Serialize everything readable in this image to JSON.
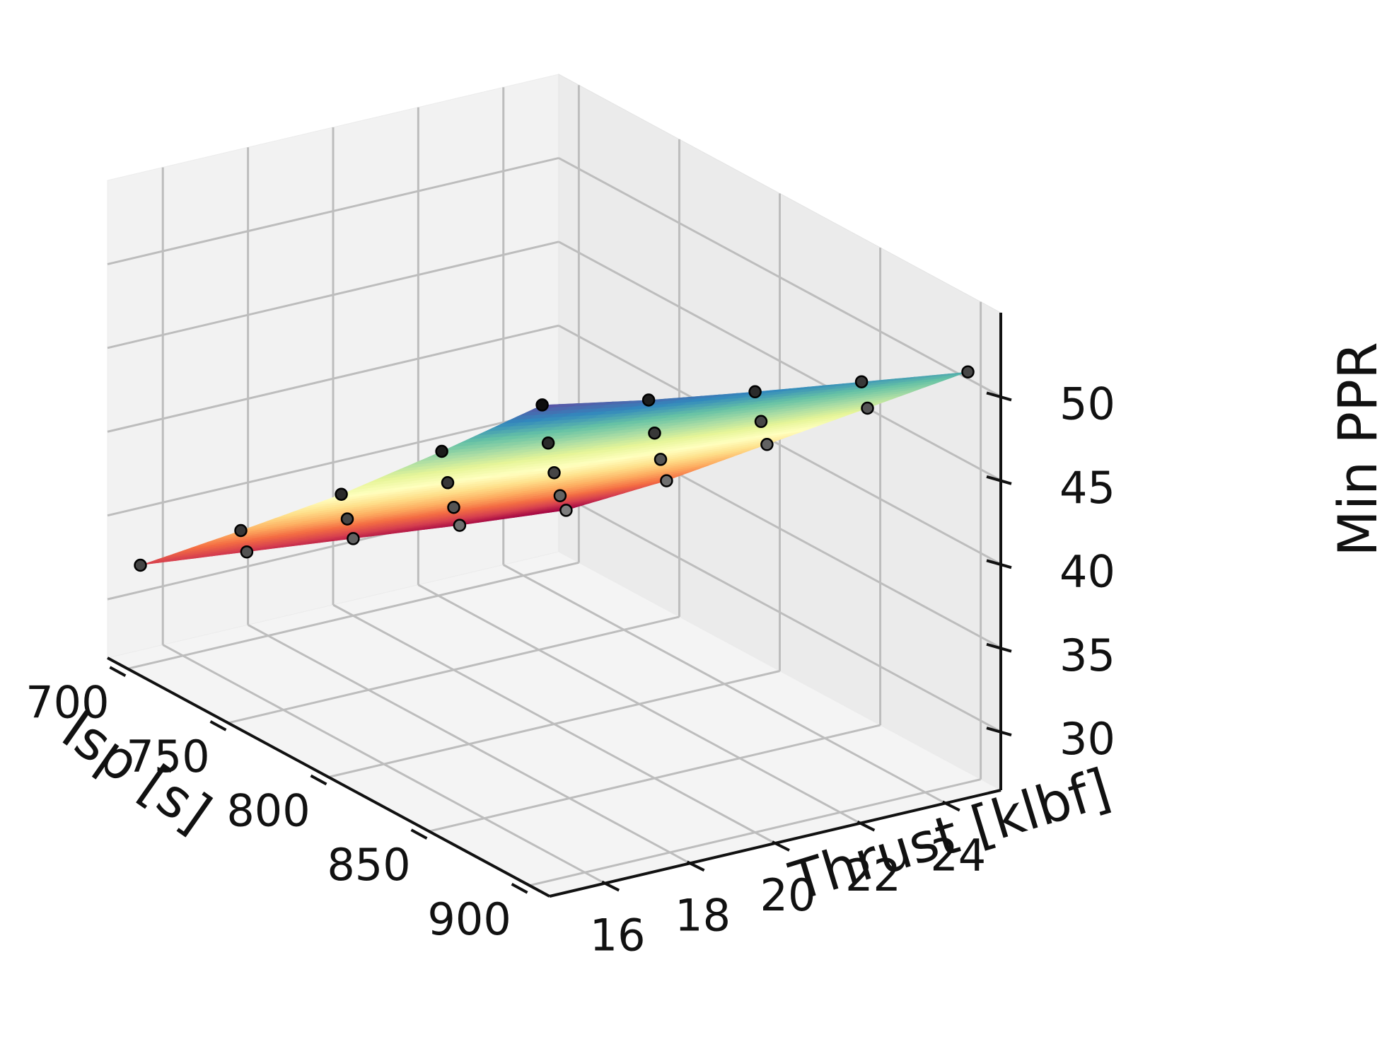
{
  "chart_data": {
    "type": "surface3d",
    "title": "",
    "xlabel": "Isp [s]",
    "ylabel": "Thrust [klbf]",
    "zlabel": "Min PPR",
    "x_ticks": [
      700,
      750,
      800,
      850,
      900
    ],
    "y_ticks": [
      16,
      18,
      20,
      22,
      24
    ],
    "z_ticks": [
      30,
      35,
      40,
      45,
      50
    ],
    "xlim": [
      690,
      910
    ],
    "ylim": [
      14.7,
      25.3
    ],
    "zlim": [
      26.5,
      55
    ],
    "grid": true,
    "colormap": "Spectral",
    "colormap_stops": [
      "#9e0142",
      "#d53e4f",
      "#f46d43",
      "#fdae61",
      "#fee08b",
      "#ffffbf",
      "#e6f598",
      "#abdda4",
      "#66c2a5",
      "#3288bd",
      "#5e4fa2"
    ],
    "isp_values": [
      700,
      750,
      800,
      850,
      900
    ],
    "thrust_values": [
      15,
      17.5,
      20,
      22.5,
      25
    ],
    "points": [
      {
        "isp": 700,
        "thrust": 15,
        "min_ppr": 32.5
      },
      {
        "isp": 750,
        "thrust": 15,
        "min_ppr": 37.8
      },
      {
        "isp": 800,
        "thrust": 15,
        "min_ppr": 43.2
      },
      {
        "isp": 850,
        "thrust": 15,
        "min_ppr": 49.0
      },
      {
        "isp": 900,
        "thrust": 15,
        "min_ppr": 55.0
      },
      {
        "isp": 700,
        "thrust": 17.5,
        "min_ppr": 31.8
      },
      {
        "isp": 750,
        "thrust": 17.5,
        "min_ppr": 37.0
      },
      {
        "isp": 800,
        "thrust": 17.5,
        "min_ppr": 42.4
      },
      {
        "isp": 850,
        "thrust": 17.5,
        "min_ppr": 48.0
      },
      {
        "isp": 900,
        "thrust": 17.5,
        "min_ppr": 53.8
      },
      {
        "isp": 700,
        "thrust": 20,
        "min_ppr": 31.1
      },
      {
        "isp": 750,
        "thrust": 20,
        "min_ppr": 36.2
      },
      {
        "isp": 800,
        "thrust": 20,
        "min_ppr": 41.5
      },
      {
        "isp": 850,
        "thrust": 20,
        "min_ppr": 47.1
      },
      {
        "isp": 900,
        "thrust": 20,
        "min_ppr": 52.8
      },
      {
        "isp": 700,
        "thrust": 22.5,
        "min_ppr": 30.4
      },
      {
        "isp": 750,
        "thrust": 22.5,
        "min_ppr": 35.4
      },
      {
        "isp": 800,
        "thrust": 22.5,
        "min_ppr": 40.8
      },
      {
        "isp": 850,
        "thrust": 22.5,
        "min_ppr": 46.3
      },
      {
        "isp": 900,
        "thrust": 22.5,
        "min_ppr": 51.9
      },
      {
        "isp": 700,
        "thrust": 25,
        "min_ppr": 29.8
      },
      {
        "isp": 750,
        "thrust": 25,
        "min_ppr": 34.8
      },
      {
        "isp": 800,
        "thrust": 25,
        "min_ppr": 40.2
      },
      {
        "isp": 850,
        "thrust": 25,
        "min_ppr": 45.6
      },
      {
        "isp": 900,
        "thrust": 25,
        "min_ppr": 51.0
      }
    ]
  }
}
